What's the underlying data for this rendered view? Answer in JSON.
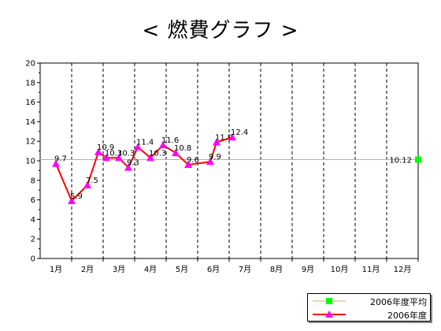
{
  "title": "< 燃費グラフ >",
  "chart_data": {
    "type": "line",
    "categories": [
      "1月",
      "2月",
      "3月",
      "4月",
      "5月",
      "6月",
      "7月",
      "8月",
      "9月",
      "10月",
      "11月",
      "12月"
    ],
    "ylim": [
      0,
      20
    ],
    "yticks": [
      "0",
      "2",
      "4",
      "6",
      "8",
      "10",
      "12",
      "14",
      "16",
      "18",
      "20"
    ],
    "grid": "vertical dashed lines at month boundaries",
    "legend_position": "bottom-right",
    "series": [
      {
        "name": "2006年度",
        "color": "#ff0000",
        "marker_color": "#ff00ff",
        "x": [
          1.0,
          1.5,
          2.0,
          2.35,
          2.6,
          3.0,
          3.3,
          3.6,
          4.0,
          4.4,
          4.8,
          5.2,
          5.9,
          6.1,
          6.6
        ],
        "y": [
          9.7,
          5.9,
          7.5,
          10.9,
          10.3,
          10.3,
          9.3,
          11.4,
          10.3,
          11.6,
          10.8,
          9.6,
          9.9,
          11.9,
          12.4
        ],
        "labels": [
          "9.7",
          "5.9",
          "7.5",
          "10.9",
          "10.3",
          "10.3",
          "9.3",
          "11.4",
          "10.3",
          "11.6",
          "10.8",
          "9.6",
          "9.9",
          "11.9",
          "12.4"
        ]
      },
      {
        "name": "2006年度平均",
        "color": "#c8b464",
        "marker_color": "#00ff00",
        "value": 10.12,
        "label": "10.12"
      }
    ]
  }
}
